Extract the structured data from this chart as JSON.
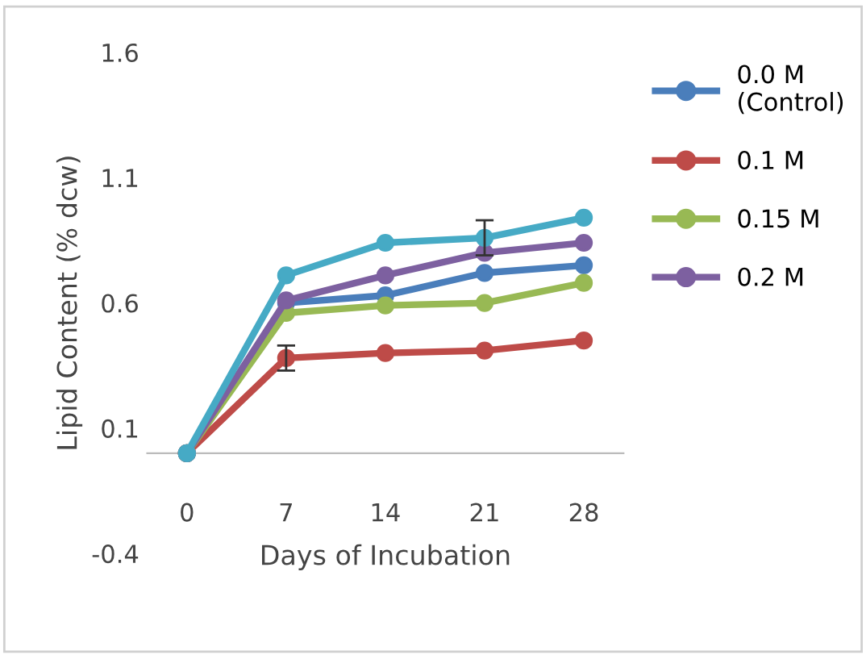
{
  "chart_data": {
    "type": "line",
    "xlabel": "Days of Incubation",
    "ylabel": "Lipid Content (% dcw)",
    "categories": [
      "0",
      "7",
      "14",
      "21",
      "28"
    ],
    "series": [
      {
        "name": "0.0 M\n(Control)",
        "color": "#4a7ebb",
        "values": [
          0,
          0.6,
          0.63,
          0.72,
          0.75
        ]
      },
      {
        "name": "0.1 M",
        "color": "#be4b48",
        "values": [
          0,
          0.38,
          0.4,
          0.41,
          0.45
        ],
        "errors": [
          null,
          0.05,
          null,
          null,
          null
        ]
      },
      {
        "name": "0.15 M",
        "color": "#98b954",
        "values": [
          0,
          0.56,
          0.59,
          0.6,
          0.68
        ]
      },
      {
        "name": "0.2 M",
        "color": "#7d60a0",
        "values": [
          0,
          0.61,
          0.71,
          0.8,
          0.84
        ]
      },
      {
        "color": "#46aac5",
        "values": [
          0,
          0.71,
          0.84,
          0.86,
          0.94
        ],
        "errors": [
          null,
          null,
          null,
          0.07,
          null
        ]
      }
    ],
    "ylim": [
      -0.4,
      1.6
    ],
    "yticks": [
      -0.4,
      0.1,
      0.6,
      1.1,
      1.6
    ],
    "grid": false,
    "legend": "right",
    "marker": "circle"
  }
}
